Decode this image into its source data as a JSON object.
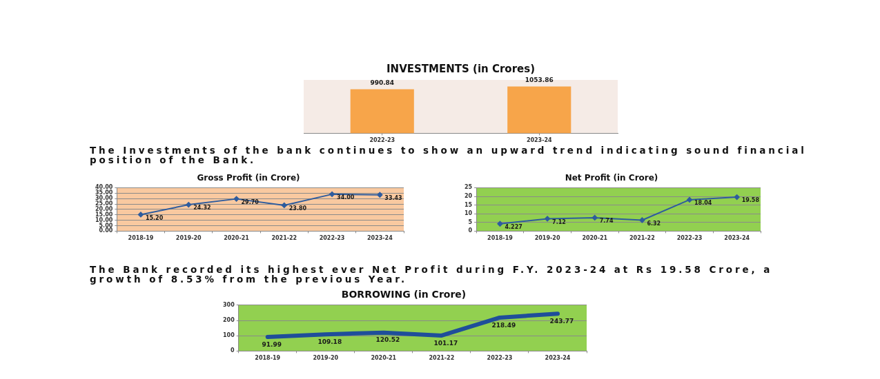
{
  "chart_data": [
    {
      "type": "bar",
      "title": "INVESTMENTS (in Crores)",
      "categories": [
        "2022-23",
        "2023-24"
      ],
      "values": [
        990.84,
        1053.86
      ],
      "color": "#f7a54a",
      "data_labels": true,
      "tick_labels": "x",
      "annotations": [
        "The Investments of the bank continues to show an upward trend indicating sound financial position of the Bank."
      ]
    },
    {
      "type": "line",
      "title": "Gross Profit (in Crore)",
      "categories": [
        "2018-19",
        "2019-20",
        "2020-21",
        "2021-22",
        "2022-23",
        "2023-24"
      ],
      "values": [
        15.2,
        24.32,
        29.7,
        23.8,
        34.0,
        33.43
      ],
      "value_labels": [
        "15.20",
        "24.32",
        "29.70",
        "23.80",
        "34.00",
        "33.43"
      ],
      "color": "#2e5c9e",
      "marker": "diamond",
      "ylim": [
        0,
        40
      ],
      "yticks": [
        {
          "value": 0,
          "label": "0.00"
        },
        {
          "value": 5,
          "label": "5.00"
        },
        {
          "value": 10,
          "label": "10.00"
        },
        {
          "value": 15,
          "label": "15.00"
        },
        {
          "value": 20,
          "label": "20.00"
        },
        {
          "value": 25,
          "label": "25.00"
        },
        {
          "value": 30,
          "label": "30.00"
        },
        {
          "value": 35,
          "label": "35.00"
        },
        {
          "value": 40,
          "label": "40.00"
        }
      ],
      "grid": "y"
    },
    {
      "type": "line",
      "title": "Net Profit (in Crore)",
      "categories": [
        "2018-19",
        "2019-20",
        "2020-21",
        "2021-22",
        "2022-23",
        "2023-24"
      ],
      "values": [
        4.227,
        7.12,
        7.74,
        6.32,
        18.04,
        19.58
      ],
      "data_labels": true,
      "color": "#2e5c9e",
      "marker": "diamond",
      "ylim": [
        0,
        25
      ],
      "yticks": [
        0,
        5,
        10,
        15,
        20,
        25
      ],
      "grid": "y"
    },
    {
      "type": "line",
      "title": "BORROWING (in Crore)",
      "categories": [
        "2018-19",
        "2019-20",
        "2020-21",
        "2021-22",
        "2022-23",
        "2023-24"
      ],
      "values": [
        91.99,
        109.18,
        120.52,
        101.17,
        218.49,
        243.77
      ],
      "data_labels": true,
      "color": "#1f4e9a",
      "ylim": [
        0,
        300
      ],
      "yticks": [
        0,
        100,
        200,
        300
      ],
      "grid": "y",
      "annotations": [
        "The Bank recorded its highest ever Net Profit during F.Y. 2023-24 at Rs 19.58 Crore, a growth of 8.53% from the previous Year."
      ]
    }
  ]
}
